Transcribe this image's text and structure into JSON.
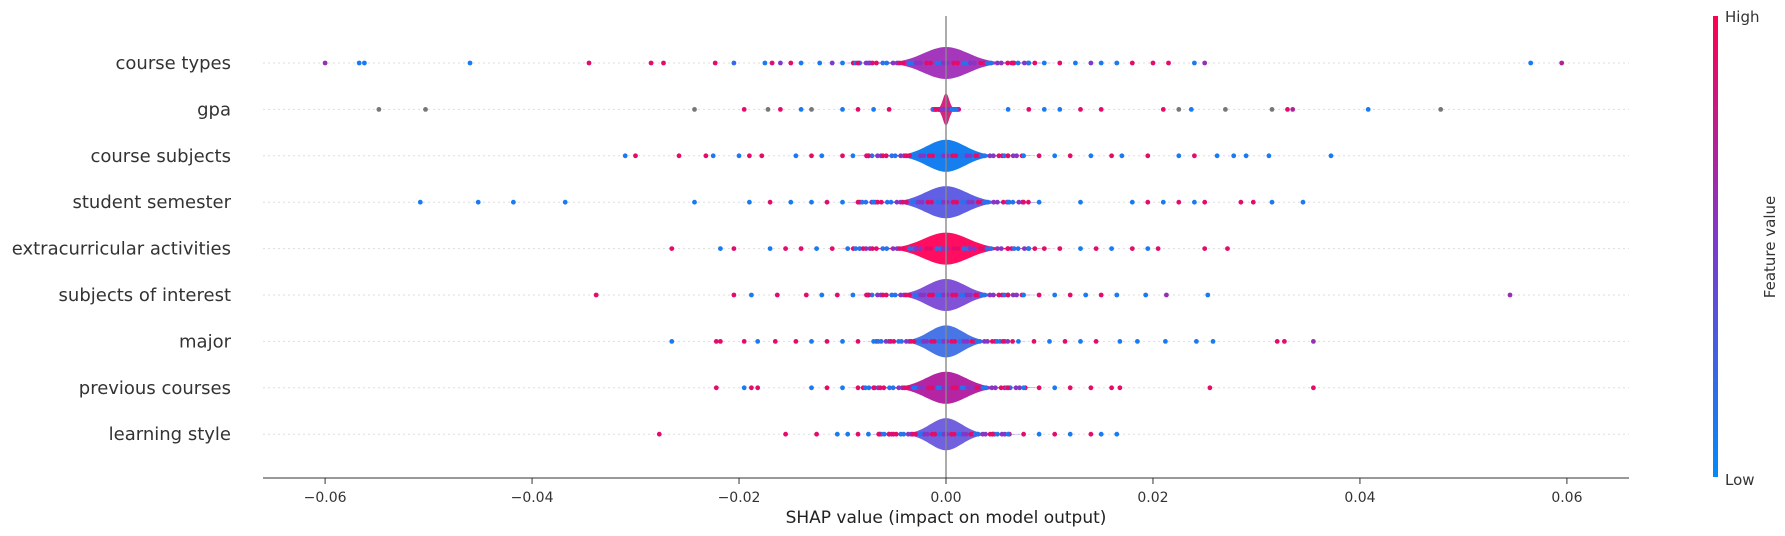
{
  "chart_data": {
    "type": "violin",
    "xlabel": "SHAP value (impact on model output)",
    "xlim": [
      -0.066,
      0.066
    ],
    "xticks": [
      -0.06,
      -0.04,
      -0.02,
      0.0,
      0.02,
      0.04,
      0.06
    ],
    "xtick_labels": [
      "−0.06",
      "−0.04",
      "−0.02",
      "0.00",
      "0.02",
      "0.04",
      "0.06"
    ],
    "colorbar": {
      "title": "Feature value",
      "high_label": "High",
      "low_label": "Low",
      "low_color": "#008bfb",
      "high_color": "#ff0052"
    },
    "features": [
      {
        "name": "course types",
        "violin_halfwidth": 0.0056,
        "violin_color": "#a02cb8",
        "points": [
          {
            "x": -0.06,
            "c": 0.6
          },
          {
            "x": -0.0567,
            "c": 0.1
          },
          {
            "x": -0.0562,
            "c": 0.1
          },
          {
            "x": -0.046,
            "c": 0.1
          },
          {
            "x": -0.0345,
            "c": 0.9
          },
          {
            "x": -0.0285,
            "c": 0.9
          },
          {
            "x": -0.0273,
            "c": 0.9
          },
          {
            "x": -0.0223,
            "c": 0.9
          },
          {
            "x": -0.0205,
            "c": 0.2
          },
          {
            "x": -0.0175,
            "c": 0.1
          },
          {
            "x": -0.0168,
            "c": 0.9
          },
          {
            "x": -0.016,
            "c": 0.5
          },
          {
            "x": -0.015,
            "c": 0.9
          },
          {
            "x": -0.014,
            "c": 0.1
          },
          {
            "x": -0.0122,
            "c": 0.1
          },
          {
            "x": -0.011,
            "c": 0.5
          },
          {
            "x": -0.01,
            "c": 0.1
          },
          {
            "x": -0.0085,
            "c": 0.9
          },
          {
            "x": -0.0075,
            "c": 0.5
          },
          {
            "x": 0.0065,
            "c": 0.9
          },
          {
            "x": 0.008,
            "c": 0.1
          },
          {
            "x": 0.0095,
            "c": 0.1
          },
          {
            "x": 0.011,
            "c": 0.9
          },
          {
            "x": 0.0125,
            "c": 0.1
          },
          {
            "x": 0.014,
            "c": 0.5
          },
          {
            "x": 0.015,
            "c": 0.1
          },
          {
            "x": 0.0165,
            "c": 0.1
          },
          {
            "x": 0.018,
            "c": 0.9
          },
          {
            "x": 0.02,
            "c": 0.9
          },
          {
            "x": 0.0215,
            "c": 0.9
          },
          {
            "x": 0.024,
            "c": 0.1
          },
          {
            "x": 0.025,
            "c": 0.6
          },
          {
            "x": 0.0565,
            "c": 0.1
          },
          {
            "x": 0.0595,
            "c": 0.7
          }
        ]
      },
      {
        "name": "gpa",
        "violin_halfwidth": 0.0008,
        "violin_color": "#d4187a",
        "points": [
          {
            "x": -0.0548,
            "c": -1
          },
          {
            "x": -0.0503,
            "c": -1
          },
          {
            "x": -0.0243,
            "c": -1
          },
          {
            "x": -0.0195,
            "c": 0.9
          },
          {
            "x": -0.0172,
            "c": -1
          },
          {
            "x": -0.016,
            "c": 0.9
          },
          {
            "x": -0.014,
            "c": 0.1
          },
          {
            "x": -0.013,
            "c": -1
          },
          {
            "x": -0.01,
            "c": 0.1
          },
          {
            "x": -0.0085,
            "c": 0.9
          },
          {
            "x": -0.007,
            "c": 0.1
          },
          {
            "x": -0.0055,
            "c": 0.9
          },
          {
            "x": 0.006,
            "c": 0.1
          },
          {
            "x": 0.008,
            "c": 0.9
          },
          {
            "x": 0.0095,
            "c": 0.1
          },
          {
            "x": 0.011,
            "c": 0.1
          },
          {
            "x": 0.013,
            "c": 0.9
          },
          {
            "x": 0.015,
            "c": 0.9
          },
          {
            "x": 0.021,
            "c": 0.9
          },
          {
            "x": 0.0225,
            "c": -1
          },
          {
            "x": 0.0237,
            "c": 0.1
          },
          {
            "x": 0.027,
            "c": -1
          },
          {
            "x": 0.0315,
            "c": -1
          },
          {
            "x": 0.033,
            "c": 0.9
          },
          {
            "x": 0.0335,
            "c": 0.7
          },
          {
            "x": 0.0408,
            "c": 0.1
          },
          {
            "x": 0.0478,
            "c": -1
          }
        ]
      },
      {
        "name": "course subjects",
        "violin_halfwidth": 0.0048,
        "violin_color": "#0a78ee",
        "points": [
          {
            "x": -0.031,
            "c": 0.1
          },
          {
            "x": -0.03,
            "c": 0.9
          },
          {
            "x": -0.0258,
            "c": 0.9
          },
          {
            "x": -0.0232,
            "c": 0.9
          },
          {
            "x": -0.0225,
            "c": 0.1
          },
          {
            "x": -0.02,
            "c": 0.1
          },
          {
            "x": -0.019,
            "c": 0.9
          },
          {
            "x": -0.0178,
            "c": 0.9
          },
          {
            "x": -0.0145,
            "c": 0.1
          },
          {
            "x": -0.013,
            "c": 0.9
          },
          {
            "x": -0.012,
            "c": 0.1
          },
          {
            "x": -0.01,
            "c": 0.9
          },
          {
            "x": -0.009,
            "c": 0.1
          },
          {
            "x": -0.0075,
            "c": 0.9
          },
          {
            "x": 0.006,
            "c": 0.9
          },
          {
            "x": 0.0075,
            "c": 0.1
          },
          {
            "x": 0.009,
            "c": 0.9
          },
          {
            "x": 0.0105,
            "c": 0.1
          },
          {
            "x": 0.012,
            "c": 0.9
          },
          {
            "x": 0.014,
            "c": 0.1
          },
          {
            "x": 0.016,
            "c": 0.9
          },
          {
            "x": 0.017,
            "c": 0.1
          },
          {
            "x": 0.0195,
            "c": 0.9
          },
          {
            "x": 0.0225,
            "c": 0.1
          },
          {
            "x": 0.024,
            "c": 0.9
          },
          {
            "x": 0.0262,
            "c": 0.1
          },
          {
            "x": 0.0278,
            "c": 0.1
          },
          {
            "x": 0.029,
            "c": 0.1
          },
          {
            "x": 0.0312,
            "c": 0.1
          },
          {
            "x": 0.0372,
            "c": 0.1
          }
        ]
      },
      {
        "name": "student semester",
        "violin_halfwidth": 0.0052,
        "violin_color": "#5856e2",
        "points": [
          {
            "x": -0.0508,
            "c": 0.1
          },
          {
            "x": -0.0452,
            "c": 0.1
          },
          {
            "x": -0.0418,
            "c": 0.1
          },
          {
            "x": -0.0368,
            "c": 0.1
          },
          {
            "x": -0.0243,
            "c": 0.1
          },
          {
            "x": -0.019,
            "c": 0.1
          },
          {
            "x": -0.017,
            "c": 0.9
          },
          {
            "x": -0.015,
            "c": 0.1
          },
          {
            "x": -0.013,
            "c": 0.1
          },
          {
            "x": -0.0115,
            "c": 0.9
          },
          {
            "x": -0.01,
            "c": 0.1
          },
          {
            "x": -0.0085,
            "c": 0.9
          },
          {
            "x": -0.007,
            "c": 0.1
          },
          {
            "x": 0.006,
            "c": 0.1
          },
          {
            "x": 0.0075,
            "c": 0.9
          },
          {
            "x": 0.009,
            "c": 0.1
          },
          {
            "x": 0.013,
            "c": 0.1
          },
          {
            "x": 0.018,
            "c": 0.1
          },
          {
            "x": 0.0195,
            "c": 0.9
          },
          {
            "x": 0.021,
            "c": 0.1
          },
          {
            "x": 0.0225,
            "c": 0.9
          },
          {
            "x": 0.024,
            "c": 0.1
          },
          {
            "x": 0.025,
            "c": 0.9
          },
          {
            "x": 0.0285,
            "c": 0.9
          },
          {
            "x": 0.0297,
            "c": 0.9
          },
          {
            "x": 0.0315,
            "c": 0.1
          },
          {
            "x": 0.0345,
            "c": 0.1
          }
        ]
      },
      {
        "name": "extracurricular activities",
        "violin_halfwidth": 0.0056,
        "violin_color": "#ff0058",
        "points": [
          {
            "x": -0.0265,
            "c": 0.9
          },
          {
            "x": -0.0218,
            "c": 0.1
          },
          {
            "x": -0.0205,
            "c": 0.9
          },
          {
            "x": -0.017,
            "c": 0.1
          },
          {
            "x": -0.0155,
            "c": 0.9
          },
          {
            "x": -0.014,
            "c": 0.9
          },
          {
            "x": -0.0125,
            "c": 0.1
          },
          {
            "x": -0.011,
            "c": 0.9
          },
          {
            "x": -0.0095,
            "c": 0.1
          },
          {
            "x": -0.008,
            "c": 0.9
          },
          {
            "x": 0.006,
            "c": 0.9
          },
          {
            "x": 0.008,
            "c": 0.1
          },
          {
            "x": 0.0095,
            "c": 0.9
          },
          {
            "x": 0.011,
            "c": 0.9
          },
          {
            "x": 0.013,
            "c": 0.1
          },
          {
            "x": 0.0145,
            "c": 0.9
          },
          {
            "x": 0.016,
            "c": 0.1
          },
          {
            "x": 0.018,
            "c": 0.9
          },
          {
            "x": 0.0195,
            "c": 0.1
          },
          {
            "x": 0.0205,
            "c": 0.9
          },
          {
            "x": 0.025,
            "c": 0.9
          },
          {
            "x": 0.0272,
            "c": 0.9
          }
        ]
      },
      {
        "name": "subjects of interest",
        "violin_halfwidth": 0.0048,
        "violin_color": "#7a48d6",
        "points": [
          {
            "x": -0.0338,
            "c": 0.9
          },
          {
            "x": -0.0205,
            "c": 0.9
          },
          {
            "x": -0.0188,
            "c": 0.1
          },
          {
            "x": -0.0163,
            "c": 0.9
          },
          {
            "x": -0.0135,
            "c": 0.9
          },
          {
            "x": -0.012,
            "c": 0.1
          },
          {
            "x": -0.0105,
            "c": 0.9
          },
          {
            "x": -0.009,
            "c": 0.1
          },
          {
            "x": -0.0075,
            "c": 0.9
          },
          {
            "x": 0.006,
            "c": 0.9
          },
          {
            "x": 0.0075,
            "c": 0.1
          },
          {
            "x": 0.009,
            "c": 0.9
          },
          {
            "x": 0.0105,
            "c": 0.1
          },
          {
            "x": 0.012,
            "c": 0.9
          },
          {
            "x": 0.0135,
            "c": 0.1
          },
          {
            "x": 0.015,
            "c": 0.9
          },
          {
            "x": 0.0165,
            "c": 0.1
          },
          {
            "x": 0.0193,
            "c": 0.1
          },
          {
            "x": 0.0213,
            "c": 0.6
          },
          {
            "x": 0.0253,
            "c": 0.1
          },
          {
            "x": 0.0545,
            "c": 0.6
          }
        ]
      },
      {
        "name": "major",
        "violin_halfwidth": 0.0042,
        "violin_color": "#3f6fe6",
        "points": [
          {
            "x": -0.0265,
            "c": 0.1
          },
          {
            "x": -0.0222,
            "c": 0.9
          },
          {
            "x": -0.0218,
            "c": 0.9
          },
          {
            "x": -0.0195,
            "c": 0.9
          },
          {
            "x": -0.0182,
            "c": 0.1
          },
          {
            "x": -0.0165,
            "c": 0.9
          },
          {
            "x": -0.0145,
            "c": 0.9
          },
          {
            "x": -0.013,
            "c": 0.1
          },
          {
            "x": -0.0115,
            "c": 0.9
          },
          {
            "x": -0.01,
            "c": 0.1
          },
          {
            "x": -0.0085,
            "c": 0.9
          },
          {
            "x": -0.007,
            "c": 0.1
          },
          {
            "x": 0.0055,
            "c": 0.9
          },
          {
            "x": 0.007,
            "c": 0.1
          },
          {
            "x": 0.0085,
            "c": 0.9
          },
          {
            "x": 0.01,
            "c": 0.1
          },
          {
            "x": 0.0115,
            "c": 0.9
          },
          {
            "x": 0.013,
            "c": 0.1
          },
          {
            "x": 0.0145,
            "c": 0.9
          },
          {
            "x": 0.0168,
            "c": 0.1
          },
          {
            "x": 0.0185,
            "c": 0.1
          },
          {
            "x": 0.0212,
            "c": 0.1
          },
          {
            "x": 0.0242,
            "c": 0.1
          },
          {
            "x": 0.0258,
            "c": 0.1
          },
          {
            "x": 0.032,
            "c": 0.9
          },
          {
            "x": 0.0327,
            "c": 0.9
          },
          {
            "x": 0.0355,
            "c": 0.6
          }
        ]
      },
      {
        "name": "previous courses",
        "violin_halfwidth": 0.005,
        "violin_color": "#b0189e",
        "points": [
          {
            "x": -0.0222,
            "c": 0.9
          },
          {
            "x": -0.0195,
            "c": 0.1
          },
          {
            "x": -0.0188,
            "c": 0.9
          },
          {
            "x": -0.0182,
            "c": 0.9
          },
          {
            "x": -0.013,
            "c": 0.1
          },
          {
            "x": -0.0115,
            "c": 0.9
          },
          {
            "x": -0.01,
            "c": 0.1
          },
          {
            "x": -0.0085,
            "c": 0.9
          },
          {
            "x": -0.007,
            "c": 0.9
          },
          {
            "x": 0.006,
            "c": 0.9
          },
          {
            "x": 0.0075,
            "c": 0.1
          },
          {
            "x": 0.009,
            "c": 0.9
          },
          {
            "x": 0.0105,
            "c": 0.1
          },
          {
            "x": 0.012,
            "c": 0.9
          },
          {
            "x": 0.014,
            "c": 0.9
          },
          {
            "x": 0.016,
            "c": 0.9
          },
          {
            "x": 0.0168,
            "c": 0.9
          },
          {
            "x": 0.0255,
            "c": 0.9
          },
          {
            "x": 0.0355,
            "c": 0.9
          }
        ]
      },
      {
        "name": "learning style",
        "violin_halfwidth": 0.004,
        "violin_color": "#6a58dc",
        "points": [
          {
            "x": -0.0277,
            "c": 0.9
          },
          {
            "x": -0.0155,
            "c": 0.9
          },
          {
            "x": -0.0125,
            "c": 0.9
          },
          {
            "x": -0.0105,
            "c": 0.1
          },
          {
            "x": -0.0095,
            "c": 0.1
          },
          {
            "x": -0.0085,
            "c": 0.9
          },
          {
            "x": -0.0075,
            "c": 0.1
          },
          {
            "x": -0.0065,
            "c": 0.9
          },
          {
            "x": -0.0055,
            "c": 0.9
          },
          {
            "x": 0.0045,
            "c": 0.9
          },
          {
            "x": 0.006,
            "c": 0.1
          },
          {
            "x": 0.0075,
            "c": 0.9
          },
          {
            "x": 0.009,
            "c": 0.1
          },
          {
            "x": 0.0105,
            "c": 0.9
          },
          {
            "x": 0.012,
            "c": 0.1
          },
          {
            "x": 0.014,
            "c": 0.9
          },
          {
            "x": 0.015,
            "c": 0.1
          },
          {
            "x": 0.0165,
            "c": 0.1
          }
        ]
      }
    ]
  }
}
